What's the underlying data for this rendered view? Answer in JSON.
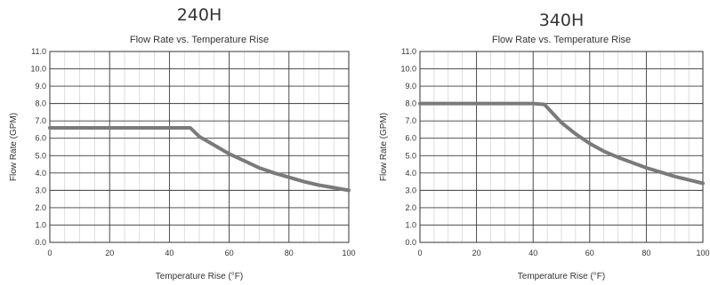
{
  "chart_data": [
    {
      "type": "line",
      "model": "240H",
      "title": "Flow Rate vs. Temperature Rise",
      "xlabel": "Temperature Rise (°F)",
      "ylabel": "Flow Rate (GPM)",
      "xlim": [
        0,
        100
      ],
      "ylim": [
        0,
        11
      ],
      "xticks": [
        "0",
        "20",
        "40",
        "60",
        "80",
        "100"
      ],
      "yticks": [
        "0.0",
        "1.0",
        "2.0",
        "3.0",
        "4.0",
        "5.0",
        "6.0",
        "7.0",
        "8.0",
        "9.0",
        "10.0",
        "11.0"
      ],
      "grid": true,
      "series": [
        {
          "x": [
            0,
            10,
            20,
            30,
            40,
            47,
            50,
            55,
            60,
            65,
            70,
            75,
            80,
            85,
            90,
            95,
            100
          ],
          "y": [
            6.6,
            6.6,
            6.6,
            6.6,
            6.6,
            6.6,
            6.1,
            5.6,
            5.1,
            4.7,
            4.3,
            4.0,
            3.75,
            3.5,
            3.3,
            3.15,
            3.0
          ]
        }
      ],
      "color": "#7a7a7a"
    },
    {
      "type": "line",
      "model": "340H",
      "title": "Flow Rate vs. Temperature Rise",
      "xlabel": "Temperature Rise (°F)",
      "ylabel": "Flow Rate (GPM)",
      "xlim": [
        0,
        100
      ],
      "ylim": [
        0,
        11
      ],
      "xticks": [
        "0",
        "20",
        "40",
        "60",
        "80",
        "100"
      ],
      "yticks": [
        "0.0",
        "1.0",
        "2.0",
        "3.0",
        "4.0",
        "5.0",
        "6.0",
        "7.0",
        "8.0",
        "9.0",
        "10.0",
        "11.0"
      ],
      "grid": true,
      "series": [
        {
          "x": [
            0,
            10,
            20,
            30,
            40,
            44,
            50,
            55,
            60,
            65,
            70,
            75,
            80,
            85,
            90,
            95,
            100
          ],
          "y": [
            8.0,
            8.0,
            8.0,
            8.0,
            8.0,
            7.95,
            6.9,
            6.25,
            5.7,
            5.25,
            4.9,
            4.6,
            4.3,
            4.05,
            3.8,
            3.6,
            3.4
          ]
        }
      ],
      "color": "#7a7a7a"
    }
  ]
}
